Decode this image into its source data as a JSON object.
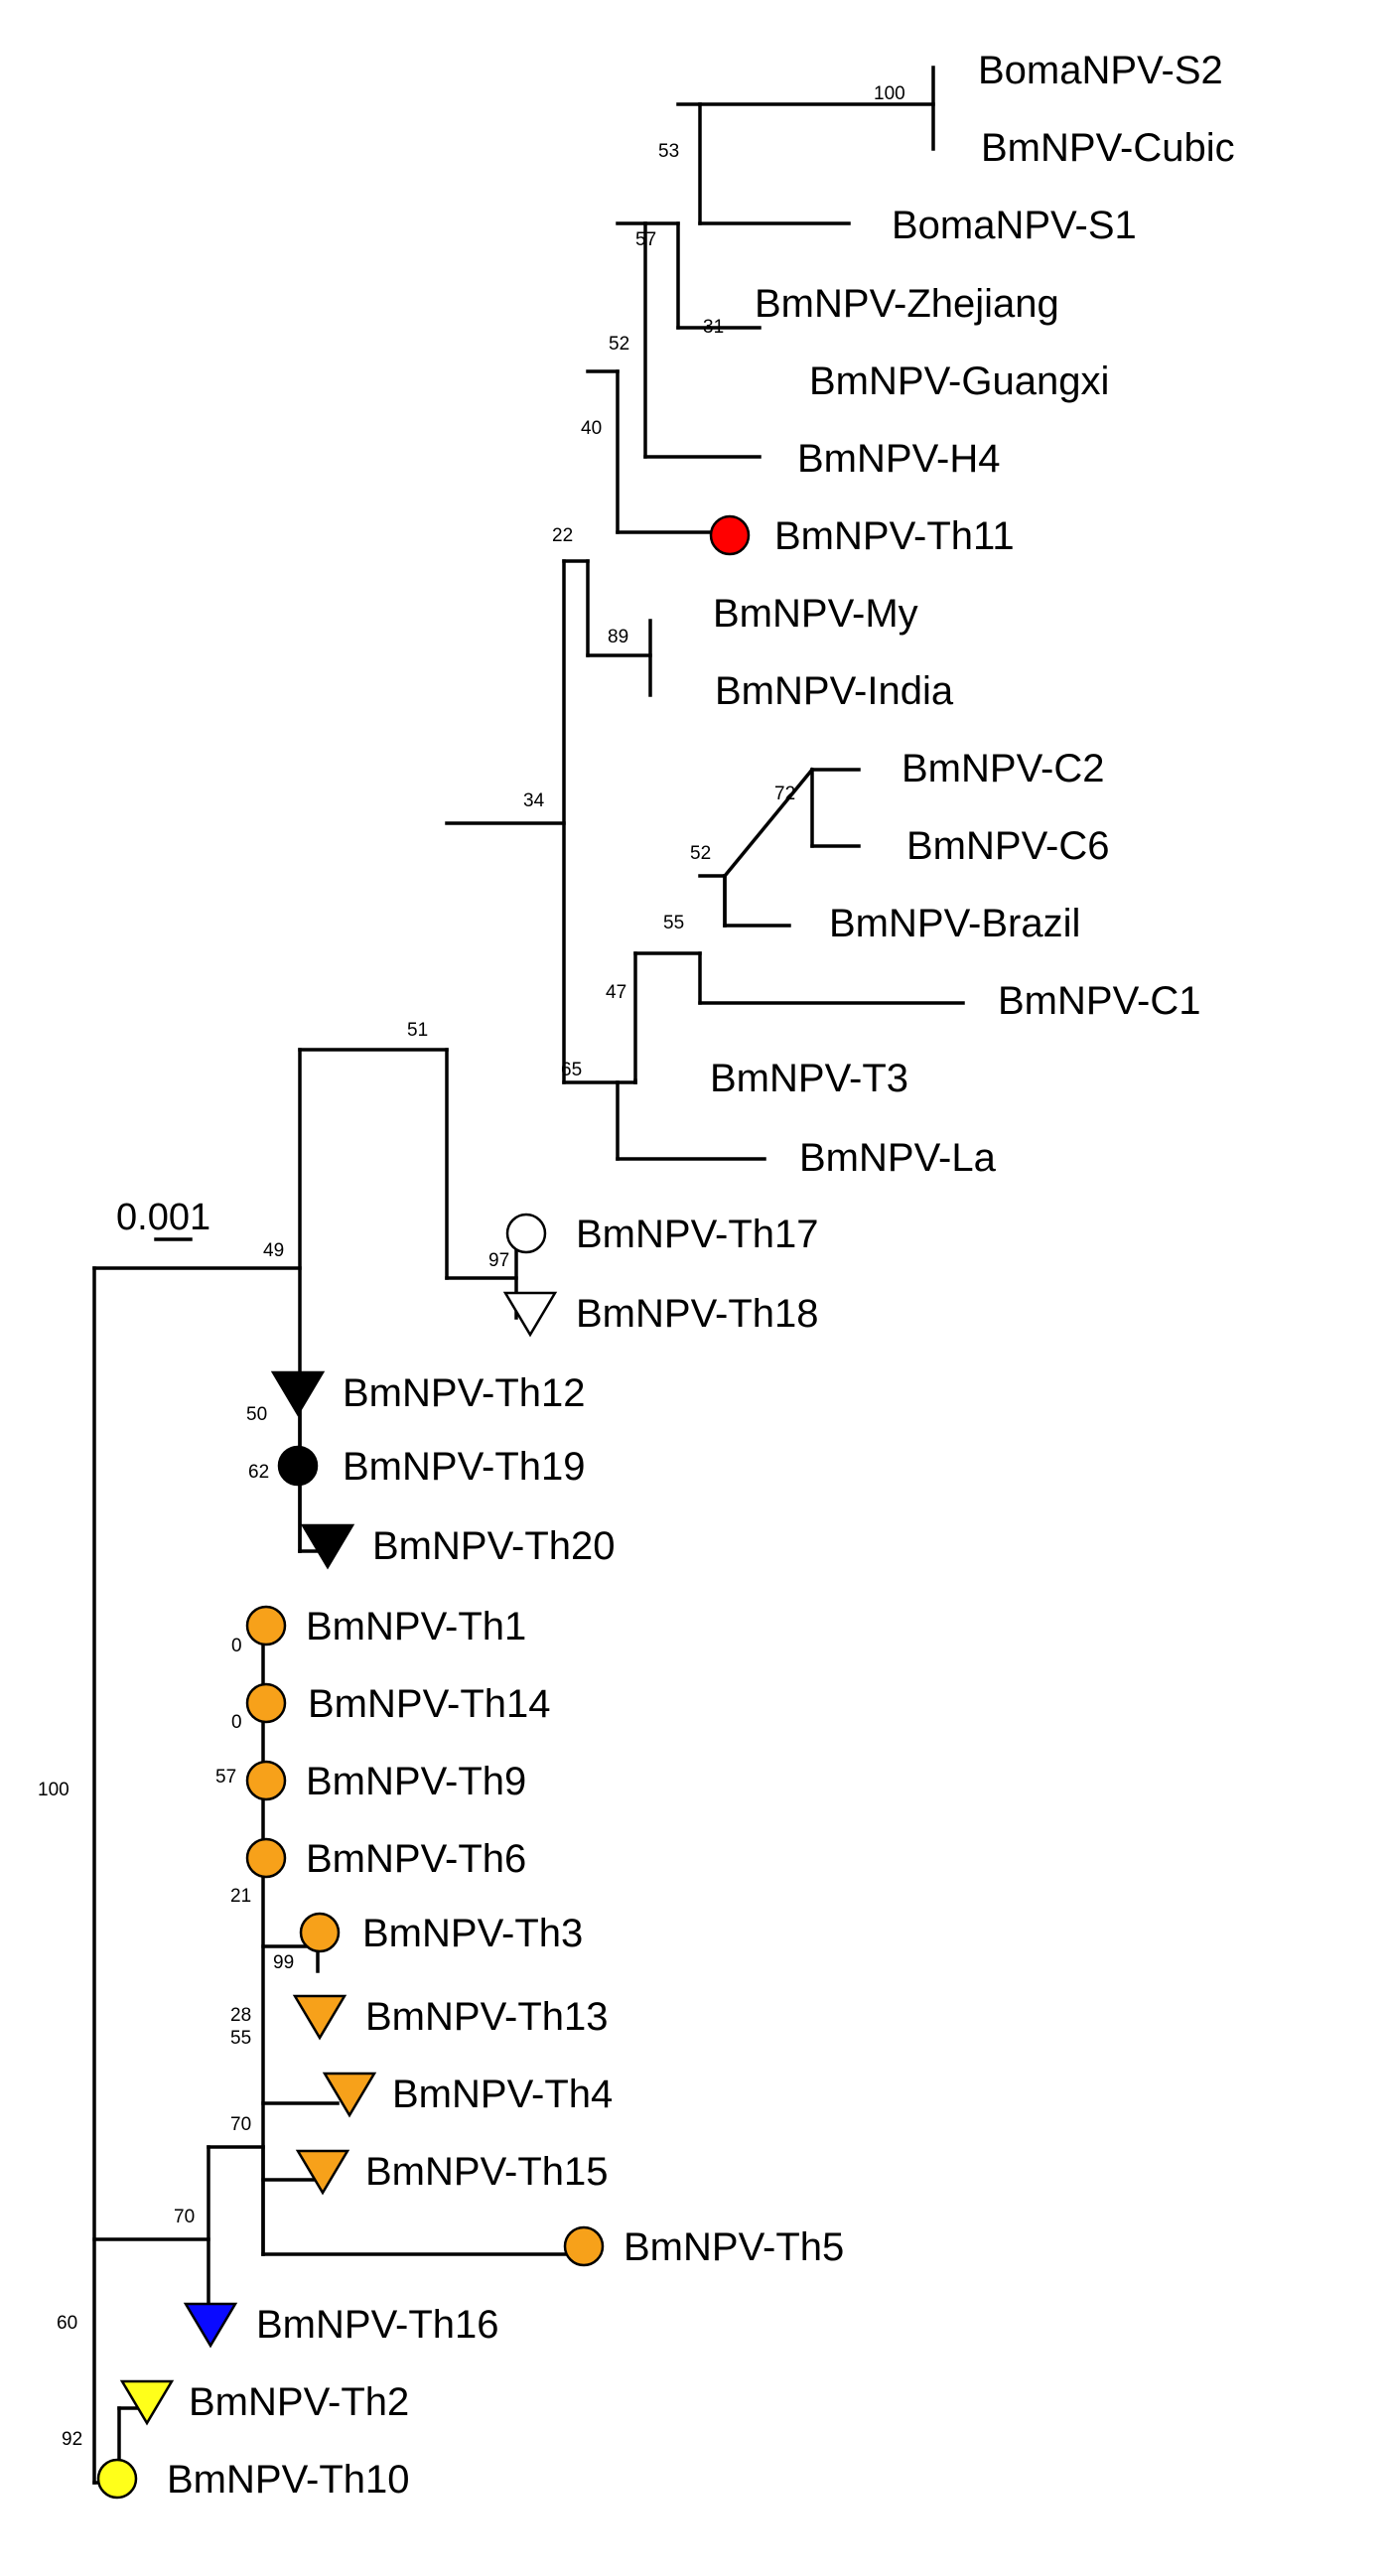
{
  "tree": {
    "scale_bar": {
      "label": "0.001"
    },
    "taxa": [
      {
        "id": "boma_s2",
        "label": "BomaNPV-S2"
      },
      {
        "id": "cubic",
        "label": "BmNPV-Cubic"
      },
      {
        "id": "boma_s1",
        "label": "BomaNPV-S1"
      },
      {
        "id": "zhejiang",
        "label": "BmNPV-Zhejiang"
      },
      {
        "id": "guangxi",
        "label": "BmNPV-Guangxi"
      },
      {
        "id": "h4",
        "label": "BmNPV-H4"
      },
      {
        "id": "th11",
        "label": "BmNPV-Th11",
        "marker": {
          "shape": "circle",
          "fill": "#ff0000"
        }
      },
      {
        "id": "my",
        "label": "BmNPV-My"
      },
      {
        "id": "india",
        "label": "BmNPV-India"
      },
      {
        "id": "c2",
        "label": "BmNPV-C2"
      },
      {
        "id": "c6",
        "label": "BmNPV-C6"
      },
      {
        "id": "brazil",
        "label": "BmNPV-Brazil"
      },
      {
        "id": "c1",
        "label": "BmNPV-C1"
      },
      {
        "id": "t3",
        "label": "BmNPV-T3"
      },
      {
        "id": "la",
        "label": "BmNPV-La"
      },
      {
        "id": "th17",
        "label": "BmNPV-Th17",
        "marker": {
          "shape": "circle",
          "fill": "#ffffff"
        }
      },
      {
        "id": "th18",
        "label": "BmNPV-Th18",
        "marker": {
          "shape": "triangle",
          "fill": "#ffffff"
        }
      },
      {
        "id": "th12",
        "label": "BmNPV-Th12",
        "marker": {
          "shape": "triangle",
          "fill": "#000000"
        }
      },
      {
        "id": "th19",
        "label": "BmNPV-Th19",
        "marker": {
          "shape": "circle",
          "fill": "#000000"
        }
      },
      {
        "id": "th20",
        "label": "BmNPV-Th20",
        "marker": {
          "shape": "triangle",
          "fill": "#000000"
        }
      },
      {
        "id": "th1",
        "label": "BmNPV-Th1",
        "marker": {
          "shape": "circle",
          "fill": "#f7a11a"
        }
      },
      {
        "id": "th14",
        "label": "BmNPV-Th14",
        "marker": {
          "shape": "circle",
          "fill": "#f7a11a"
        }
      },
      {
        "id": "th9",
        "label": "BmNPV-Th9",
        "marker": {
          "shape": "circle",
          "fill": "#f7a11a"
        }
      },
      {
        "id": "th6",
        "label": "BmNPV-Th6",
        "marker": {
          "shape": "circle",
          "fill": "#f7a11a"
        }
      },
      {
        "id": "th3",
        "label": "BmNPV-Th3",
        "marker": {
          "shape": "circle",
          "fill": "#f7a11a"
        }
      },
      {
        "id": "th13",
        "label": "BmNPV-Th13",
        "marker": {
          "shape": "triangle",
          "fill": "#f7a11a"
        }
      },
      {
        "id": "th4",
        "label": "BmNPV-Th4",
        "marker": {
          "shape": "triangle",
          "fill": "#f7a11a"
        }
      },
      {
        "id": "th15",
        "label": "BmNPV-Th15",
        "marker": {
          "shape": "triangle",
          "fill": "#f7a11a"
        }
      },
      {
        "id": "th5",
        "label": "BmNPV-Th5",
        "marker": {
          "shape": "circle",
          "fill": "#f7a11a"
        }
      },
      {
        "id": "th16",
        "label": "BmNPV-Th16",
        "marker": {
          "shape": "triangle",
          "fill": "#0a0aff"
        }
      },
      {
        "id": "th2",
        "label": "BmNPV-Th2",
        "marker": {
          "shape": "triangle",
          "fill": "#ffff1a"
        }
      },
      {
        "id": "th10",
        "label": "BmNPV-Th10",
        "marker": {
          "shape": "circle",
          "fill": "#ffff1a"
        }
      }
    ],
    "support_values": [
      {
        "id": "s_boma_cubic",
        "label": "100"
      },
      {
        "id": "s_53",
        "label": "53"
      },
      {
        "id": "s_57a",
        "label": "57"
      },
      {
        "id": "s_31",
        "label": "31"
      },
      {
        "id": "s_52a",
        "label": "52"
      },
      {
        "id": "s_40",
        "label": "40"
      },
      {
        "id": "s_22",
        "label": "22"
      },
      {
        "id": "s_89",
        "label": "89"
      },
      {
        "id": "s_34",
        "label": "34"
      },
      {
        "id": "s_72",
        "label": "72"
      },
      {
        "id": "s_52b",
        "label": "52"
      },
      {
        "id": "s_55a",
        "label": "55"
      },
      {
        "id": "s_47",
        "label": "47"
      },
      {
        "id": "s_65",
        "label": "65"
      },
      {
        "id": "s_51",
        "label": "51"
      },
      {
        "id": "s_97",
        "label": "97"
      },
      {
        "id": "s_49",
        "label": "49"
      },
      {
        "id": "s_50",
        "label": "50"
      },
      {
        "id": "s_62",
        "label": "62"
      },
      {
        "id": "s_0a",
        "label": "0"
      },
      {
        "id": "s_0b",
        "label": "0"
      },
      {
        "id": "s_57b",
        "label": "57"
      },
      {
        "id": "s_21",
        "label": "21"
      },
      {
        "id": "s_99",
        "label": "99"
      },
      {
        "id": "s_28",
        "label": "28"
      },
      {
        "id": "s_55b",
        "label": "55"
      },
      {
        "id": "s_70a",
        "label": "70"
      },
      {
        "id": "s_70b",
        "label": "70"
      },
      {
        "id": "s_100root",
        "label": "100"
      },
      {
        "id": "s_60",
        "label": "60"
      },
      {
        "id": "s_92",
        "label": "92"
      }
    ]
  }
}
